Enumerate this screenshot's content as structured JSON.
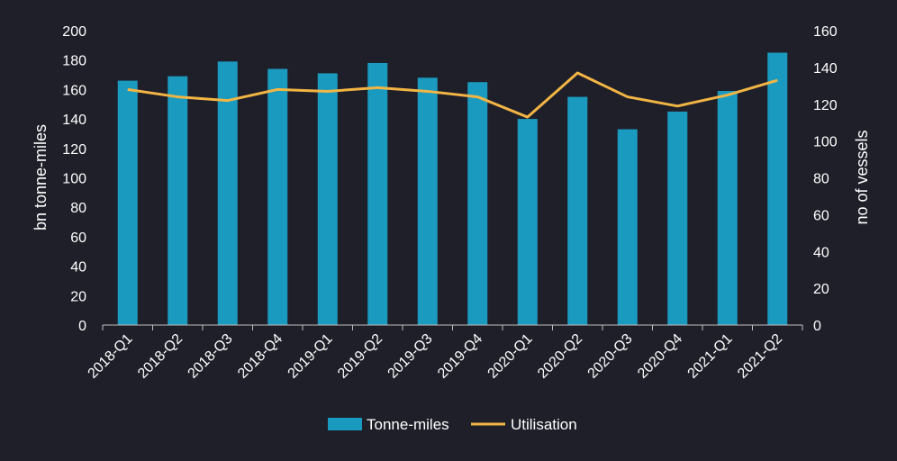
{
  "chart_data": {
    "type": "bar",
    "title": "",
    "categories": [
      "2018-Q1",
      "2018-Q2",
      "2018-Q3",
      "2018-Q4",
      "2019-Q1",
      "2019-Q2",
      "2019-Q3",
      "2019-Q4",
      "2020-Q1",
      "2020-Q2",
      "2020-Q3",
      "2020-Q4",
      "2021-Q1",
      "2021-Q2"
    ],
    "series": [
      {
        "name": "Tonne-miles",
        "type": "bar",
        "axis": "left",
        "color": "#1b9ac0",
        "values": [
          166,
          169,
          179,
          174,
          171,
          178,
          168,
          165,
          140,
          155,
          133,
          145,
          159,
          185
        ]
      },
      {
        "name": "Utilisation",
        "type": "line",
        "axis": "right",
        "color": "#f2b544",
        "values": [
          128,
          124,
          122,
          128,
          127,
          129,
          127,
          124,
          113,
          137,
          124,
          119,
          125,
          133
        ]
      }
    ],
    "xlabel": "",
    "ylabel": "bn tonne-miles",
    "y2label": "no of vessels",
    "ylim": [
      0,
      200
    ],
    "y2lim": [
      0,
      160
    ],
    "yticks": [
      0,
      20,
      40,
      60,
      80,
      100,
      120,
      140,
      160,
      180,
      200
    ],
    "y2ticks": [
      0,
      20,
      40,
      60,
      80,
      100,
      120,
      140,
      160
    ],
    "grid": false,
    "legend": "bottom-center"
  }
}
